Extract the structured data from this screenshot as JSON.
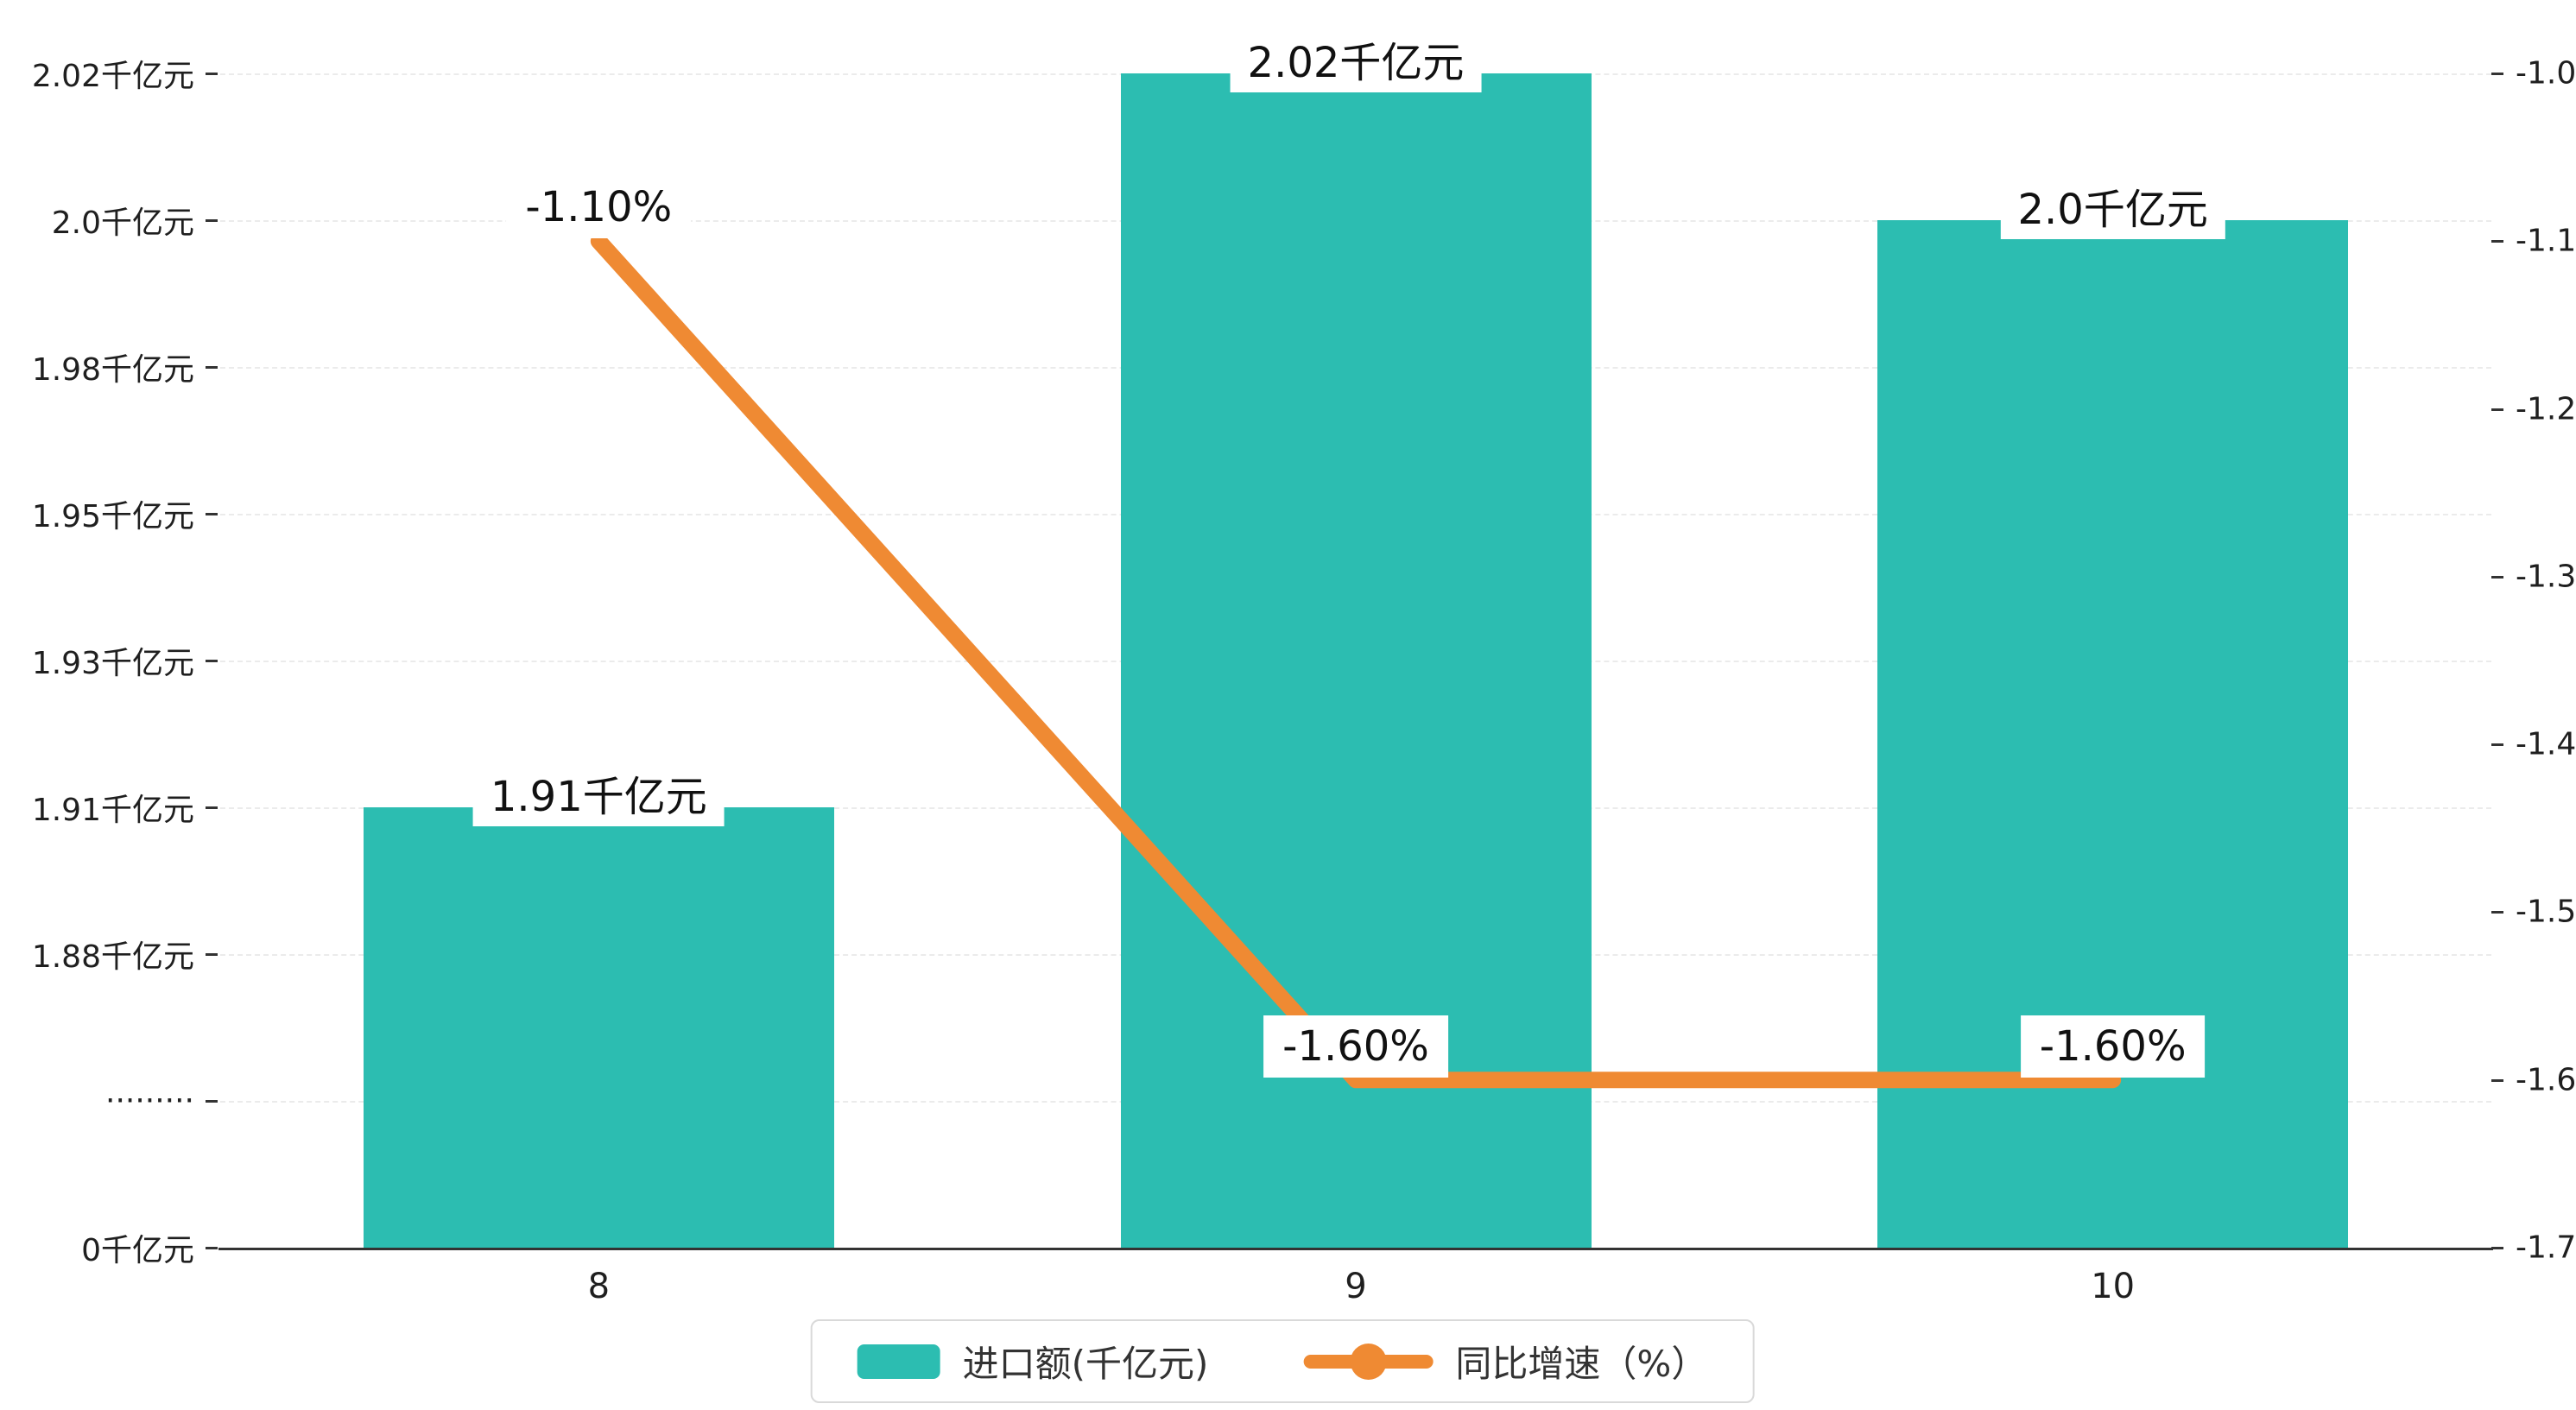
{
  "chart_data": {
    "type": "bar+line",
    "title": "",
    "categories": [
      "8",
      "9",
      "10"
    ],
    "series": [
      {
        "name": "进口额(千亿元)",
        "type": "bar",
        "axis": "left",
        "values": [
          1.91,
          2.02,
          2.0
        ],
        "labels": [
          "1.91千亿元",
          "2.02千亿元",
          "2.0千亿元"
        ],
        "color": "#2cbdb1"
      },
      {
        "name": "同比增速（%）",
        "type": "line",
        "axis": "right",
        "values": [
          -1.1,
          -1.6,
          -1.6
        ],
        "labels": [
          "-1.10%",
          "-1.60%",
          "-1.60%"
        ],
        "color": "#ef8a33"
      }
    ],
    "left_axis": {
      "broken": true,
      "ticks": [
        {
          "label": "0千亿元",
          "value": 0
        },
        {
          "label": "·········",
          "value": null
        },
        {
          "label": "1.88千亿元",
          "value": 1.88
        },
        {
          "label": "1.91千亿元",
          "value": 1.91
        },
        {
          "label": "1.93千亿元",
          "value": 1.93
        },
        {
          "label": "1.95千亿元",
          "value": 1.95
        },
        {
          "label": "1.98千亿元",
          "value": 1.98
        },
        {
          "label": "2.0千亿元",
          "value": 2.0
        },
        {
          "label": "2.02千亿元",
          "value": 2.02
        }
      ]
    },
    "right_axis": {
      "min": -1.7,
      "max": -1.0,
      "step": 0.1,
      "tick_labels": [
        "-1.0",
        "-1.1",
        "-1.2",
        "-1.3",
        "-1.4",
        "-1.5",
        "-1.6",
        "-1.7"
      ]
    },
    "legend": [
      {
        "label": "进口额(千亿元)",
        "marker": "bar",
        "color": "#2cbdb1"
      },
      {
        "label": "同比增速（%）",
        "marker": "line",
        "color": "#ef8a33"
      }
    ],
    "grid": true,
    "legend_position": "bottom"
  }
}
